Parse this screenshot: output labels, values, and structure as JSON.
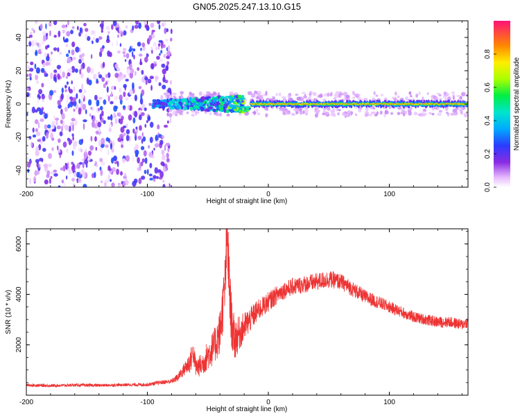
{
  "chart_data": [
    {
      "type": "heatmap",
      "title": "GN05.2025.247.13.10.G15",
      "xlabel": "Height of straight line (km)",
      "ylabel": "Frequency (Hz)",
      "xlim": [
        -200,
        165
      ],
      "ylim": [
        -50,
        50
      ],
      "xticks": [
        -200,
        -100,
        0,
        100
      ],
      "yticks": [
        -40,
        -20,
        0,
        20,
        40
      ],
      "colorbar": {
        "label": "Normalized spectral amplitude",
        "range": [
          0,
          1
        ],
        "ticks": [
          0.0,
          0.2,
          0.4,
          0.6,
          0.8
        ]
      },
      "regions": [
        {
          "name": "broadband noise",
          "x": [
            -200,
            -80
          ],
          "freq_spread_hz": 50,
          "amplitude": 0.1
        },
        {
          "name": "emerging signal",
          "x": [
            -95,
            -20
          ],
          "freq_center_hz": 0,
          "amplitude": 0.45
        },
        {
          "name": "dip",
          "x": [
            -28,
            -15
          ],
          "freq_center_hz": -3,
          "amplitude": 0.6
        },
        {
          "name": "steady tone",
          "x": [
            -15,
            165
          ],
          "freq_center_hz": 0,
          "amplitude": 0.9
        }
      ]
    },
    {
      "type": "line",
      "xlabel": "Height of straight line (km)",
      "ylabel": "SNR (10 * v/v)",
      "xlim": [
        -200,
        165
      ],
      "ylim": [
        0,
        6600
      ],
      "xticks": [
        -200,
        -100,
        0,
        100
      ],
      "yticks": [
        2000,
        4000,
        6000
      ],
      "series": [
        {
          "name": "SNR",
          "color": "#ee3333",
          "x": [
            -200,
            -180,
            -160,
            -140,
            -120,
            -100,
            -90,
            -80,
            -75,
            -70,
            -65,
            -62,
            -60,
            -55,
            -50,
            -45,
            -40,
            -36,
            -34,
            -32,
            -30,
            -28,
            -25,
            -20,
            -15,
            -10,
            -5,
            0,
            10,
            20,
            30,
            40,
            50,
            60,
            70,
            80,
            90,
            100,
            110,
            120,
            130,
            140,
            150,
            160,
            165
          ],
          "y": [
            400,
            380,
            400,
            390,
            410,
            420,
            500,
            550,
            700,
            1000,
            1300,
            1700,
            1100,
            1200,
            1600,
            1900,
            2500,
            4200,
            6400,
            4000,
            2700,
            2200,
            2400,
            2700,
            3000,
            3300,
            3500,
            3700,
            4100,
            4300,
            4400,
            4500,
            4600,
            4500,
            4200,
            3900,
            3700,
            3500,
            3300,
            3100,
            3000,
            2900,
            2900,
            2800,
            2900
          ],
          "noise_amplitude": [
            60,
            60,
            60,
            60,
            60,
            70,
            80,
            100,
            150,
            250,
            450,
            500,
            400,
            450,
            600,
            700,
            900,
            1200,
            1500,
            1300,
            1000,
            900,
            700,
            600,
            500,
            450,
            400,
            400,
            350,
            350,
            350,
            350,
            350,
            320,
            300,
            280,
            260,
            240,
            230,
            220,
            220,
            220,
            220,
            220,
            220
          ]
        }
      ]
    }
  ]
}
